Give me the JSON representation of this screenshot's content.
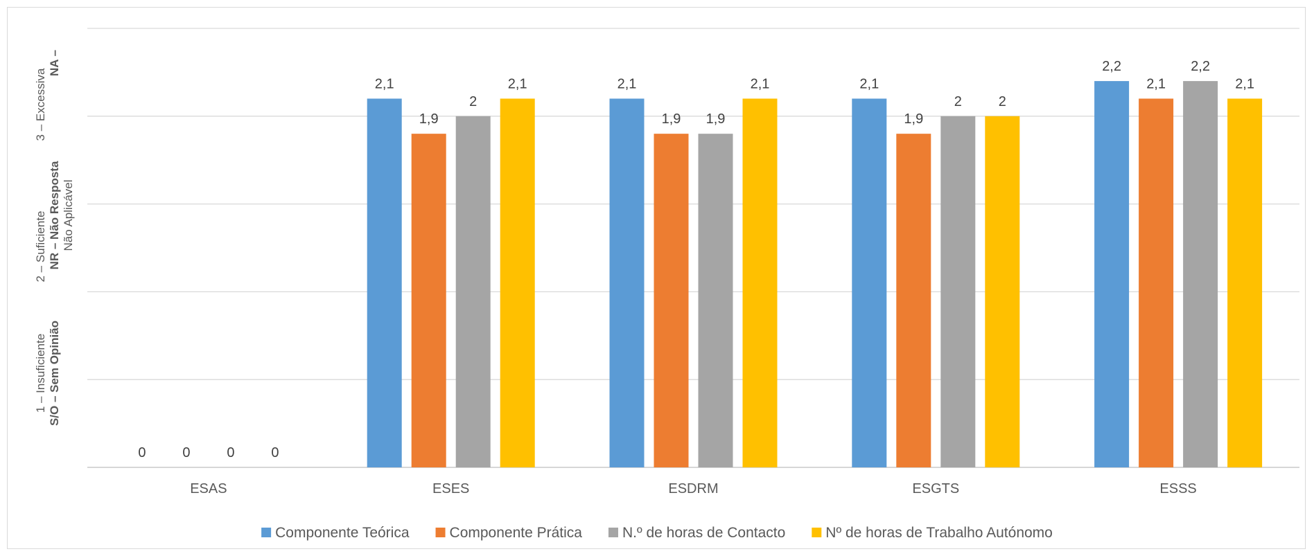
{
  "colors": {
    "Componente Teórica": "#5b9bd5",
    "Componente Prática": "#ed7d31",
    "N.º de horas de Contacto": "#a5a5a5",
    "Nº de horas de Trabalho Autónomo": "#ffc000"
  },
  "y_axis": {
    "level1_line1": "1 – Insuficiente",
    "level1_line2": "S/O – Sem Opinião",
    "level2_line1": "2 – Suficiente",
    "level2_line2": "NR – Não Resposta",
    "level2_line3": "Não Aplicável",
    "level3_line1": "3 – Excessiva",
    "level3_line2": "NA –"
  },
  "chart_data": {
    "type": "bar",
    "title": "",
    "xlabel": "",
    "ylabel": "",
    "ylim": [
      0,
      2.5
    ],
    "grid": true,
    "legend_position": "bottom",
    "categories": [
      "ESAS",
      "ESES",
      "ESDRM",
      "ESGTS",
      "ESSS"
    ],
    "series": [
      {
        "name": "Componente Teórica",
        "values": [
          0,
          2.1,
          2.1,
          2.1,
          2.2
        ],
        "labels": [
          "0",
          "2,1",
          "2,1",
          "2,1",
          "2,2"
        ]
      },
      {
        "name": "Componente Prática",
        "values": [
          0,
          1.9,
          1.9,
          1.9,
          2.1
        ],
        "labels": [
          "0",
          "1,9",
          "1,9",
          "1,9",
          "2,1"
        ]
      },
      {
        "name": "N.º de horas de Contacto",
        "values": [
          0,
          2,
          1.9,
          2,
          2.2
        ],
        "labels": [
          "0",
          "2",
          "1,9",
          "2",
          "2,2"
        ]
      },
      {
        "name": "Nº de horas de Trabalho Autónomo",
        "values": [
          0,
          2.1,
          2.1,
          2,
          2.1
        ],
        "labels": [
          "0",
          "2,1",
          "2,1",
          "2",
          "2,1"
        ]
      }
    ]
  }
}
